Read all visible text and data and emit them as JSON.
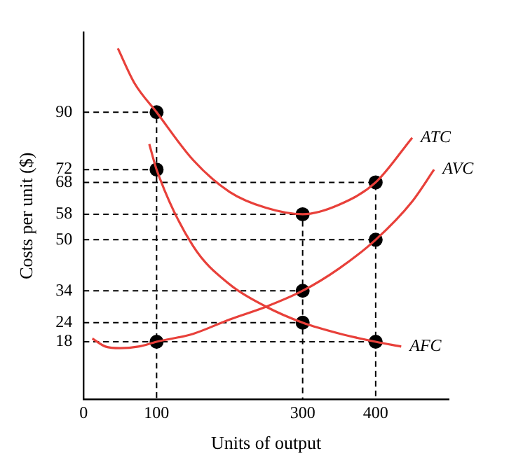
{
  "chart_data": {
    "type": "line",
    "xlabel": "Units of output",
    "ylabel": "Costs per unit ($)",
    "xlim": [
      0,
      500
    ],
    "xticks": [
      0,
      100,
      300,
      400
    ],
    "ylim": [
      0,
      115
    ],
    "yticks": [
      18,
      24,
      34,
      50,
      58,
      68,
      72,
      90
    ],
    "grid": false,
    "series": [
      {
        "name": "ATC",
        "color": "#e8403a",
        "marker": "none",
        "x": [
          47,
          70,
          100,
          150,
          200,
          250,
          300,
          350,
          400,
          450
        ],
        "values": [
          110,
          99,
          90,
          75,
          65,
          60,
          58,
          61,
          68,
          82
        ]
      },
      {
        "name": "AVC",
        "color": "#e8403a",
        "marker": "none",
        "x": [
          12,
          30,
          50,
          75,
          100,
          150,
          200,
          250,
          300,
          350,
          400,
          450,
          480
        ],
        "values": [
          19,
          16.5,
          16,
          16.5,
          18,
          20.5,
          25,
          29,
          34,
          41,
          50,
          62,
          72
        ]
      },
      {
        "name": "AFC",
        "color": "#e8403a",
        "marker": "none",
        "x": [
          90,
          100,
          150,
          200,
          250,
          300,
          350,
          400,
          435
        ],
        "values": [
          80,
          72,
          48,
          36,
          29,
          24,
          20.6,
          18,
          16.5
        ]
      },
      {
        "type": "scatter",
        "color": "#000000",
        "marker": "circle",
        "x": [
          100,
          100,
          100,
          300,
          300,
          300,
          400,
          400,
          400
        ],
        "values": [
          90,
          72,
          18,
          58,
          34,
          24,
          68,
          50,
          18
        ]
      },
      {
        "color": "#000000",
        "marker": "none",
        "line_style": "dashed",
        "x": [
          0,
          100,
          100
        ],
        "values": [
          90,
          90,
          0
        ]
      },
      {
        "color": "#000000",
        "marker": "none",
        "line_style": "dashed",
        "x": [
          0,
          100
        ],
        "values": [
          72,
          72
        ]
      },
      {
        "color": "#000000",
        "marker": "none",
        "line_style": "dashed",
        "x": [
          0,
          100
        ],
        "values": [
          18,
          18
        ]
      },
      {
        "color": "#000000",
        "marker": "none",
        "line_style": "dashed",
        "x": [
          0,
          300,
          300
        ],
        "values": [
          58,
          58,
          0
        ]
      },
      {
        "color": "#000000",
        "marker": "none",
        "line_style": "dashed",
        "x": [
          0,
          300
        ],
        "values": [
          34,
          34
        ]
      },
      {
        "color": "#000000",
        "marker": "none",
        "line_style": "dashed",
        "x": [
          0,
          300
        ],
        "values": [
          24,
          24
        ]
      },
      {
        "color": "#000000",
        "marker": "none",
        "line_style": "dashed",
        "x": [
          0,
          400,
          400
        ],
        "values": [
          68,
          68,
          0
        ]
      },
      {
        "color": "#000000",
        "marker": "none",
        "line_style": "dashed",
        "x": [
          0,
          400
        ],
        "values": [
          50,
          50
        ]
      },
      {
        "color": "#000000",
        "marker": "none",
        "line_style": "dashed",
        "x": [
          0,
          400
        ],
        "values": [
          18,
          18
        ]
      }
    ]
  }
}
